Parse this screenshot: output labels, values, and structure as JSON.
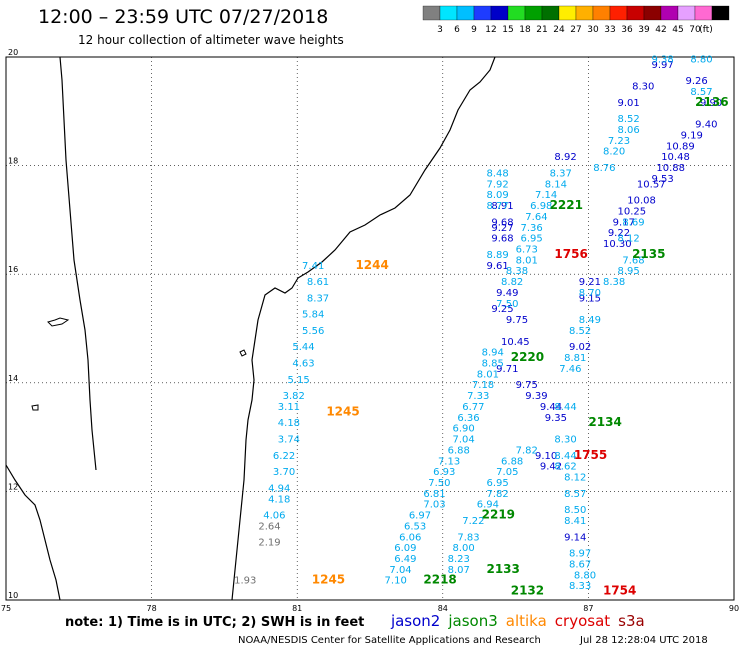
{
  "header": {
    "title": "12:00 – 23:59 UTC 07/27/2018",
    "subtitle": "12 hour collection of altimeter wave heights"
  },
  "color_scale": {
    "labels": [
      "3",
      "6",
      "9",
      "12",
      "15",
      "18",
      "21",
      "24",
      "27",
      "30",
      "33",
      "36",
      "39",
      "42",
      "45",
      "70",
      "(ft)"
    ],
    "colors": [
      "#808080",
      "#00e5ff",
      "#00bfff",
      "#1e3cff",
      "#0000c8",
      "#22dd22",
      "#00a000",
      "#007000",
      "#ffee00",
      "#ffb000",
      "#ff8000",
      "#ff2000",
      "#c80000",
      "#8b0000",
      "#b000b0",
      "#e6a0ff",
      "#ff69d2",
      "#000000"
    ]
  },
  "map": {
    "x_ticks": [
      "75",
      "78",
      "81",
      "84",
      "87",
      "90"
    ],
    "y_ticks": [
      "20",
      "18",
      "16",
      "14",
      "12",
      "10"
    ]
  },
  "chart_data": {
    "type": "scatter",
    "xlim": [
      75,
      90
    ],
    "ylim": [
      10,
      20
    ],
    "grid": true,
    "series": [
      {
        "name": "jason2",
        "color": "#0000cc",
        "points": [
          {
            "x": 87.6,
            "y": 19.1,
            "v": "9.01"
          },
          {
            "x": 88.3,
            "y": 19.8,
            "v": "9.97"
          },
          {
            "x": 87.9,
            "y": 19.4,
            "v": "8.30"
          },
          {
            "x": 86.3,
            "y": 18.1,
            "v": "8.92"
          },
          {
            "x": 85.0,
            "y": 17.2,
            "v": "8.91"
          },
          {
            "x": 85.0,
            "y": 16.9,
            "v": "9.68"
          },
          {
            "x": 85.0,
            "y": 16.8,
            "v": "9.27"
          },
          {
            "x": 85.0,
            "y": 16.6,
            "v": "9.68"
          },
          {
            "x": 84.9,
            "y": 16.1,
            "v": "9.61"
          },
          {
            "x": 85.1,
            "y": 15.6,
            "v": "9.49"
          },
          {
            "x": 85.0,
            "y": 15.3,
            "v": "9.25"
          },
          {
            "x": 85.3,
            "y": 15.1,
            "v": "9.75"
          },
          {
            "x": 85.2,
            "y": 14.7,
            "v": "10.45"
          },
          {
            "x": 85.1,
            "y": 14.2,
            "v": "9.71"
          },
          {
            "x": 85.5,
            "y": 13.9,
            "v": "9.75"
          },
          {
            "x": 85.7,
            "y": 13.7,
            "v": "9.39"
          },
          {
            "x": 86.0,
            "y": 13.5,
            "v": "9.44"
          },
          {
            "x": 86.1,
            "y": 13.3,
            "v": "9.35"
          },
          {
            "x": 85.9,
            "y": 12.6,
            "v": "9.10"
          },
          {
            "x": 86.0,
            "y": 12.4,
            "v": "9.42"
          },
          {
            "x": 86.5,
            "y": 11.1,
            "v": "9.14"
          },
          {
            "x": 86.6,
            "y": 14.6,
            "v": "9.02"
          },
          {
            "x": 86.8,
            "y": 15.8,
            "v": "9.21"
          },
          {
            "x": 86.8,
            "y": 15.5,
            "v": "9.15"
          },
          {
            "x": 89.0,
            "y": 19.5,
            "v": "9.26"
          },
          {
            "x": 89.3,
            "y": 19.1,
            "v": "9.90"
          },
          {
            "x": 89.2,
            "y": 18.7,
            "v": "9.40"
          },
          {
            "x": 88.9,
            "y": 18.5,
            "v": "9.19"
          },
          {
            "x": 88.6,
            "y": 18.3,
            "v": "10.89"
          },
          {
            "x": 88.5,
            "y": 18.1,
            "v": "10.48"
          },
          {
            "x": 88.4,
            "y": 17.9,
            "v": "10.88"
          },
          {
            "x": 88.3,
            "y": 17.7,
            "v": "9.53"
          },
          {
            "x": 88.0,
            "y": 17.6,
            "v": "10.57"
          },
          {
            "x": 87.8,
            "y": 17.3,
            "v": "10.08"
          },
          {
            "x": 87.6,
            "y": 17.1,
            "v": "10.25"
          },
          {
            "x": 87.5,
            "y": 16.9,
            "v": "9.17"
          },
          {
            "x": 87.4,
            "y": 16.7,
            "v": "9.22"
          },
          {
            "x": 87.3,
            "y": 16.5,
            "v": "10.30"
          }
        ]
      },
      {
        "name": "jason3",
        "color": "#00aaee",
        "points": [
          {
            "x": 88.3,
            "y": 19.9,
            "v": "9.38"
          },
          {
            "x": 89.1,
            "y": 19.9,
            "v": "8.80"
          },
          {
            "x": 89.1,
            "y": 19.3,
            "v": "8.57"
          },
          {
            "x": 87.6,
            "y": 18.8,
            "v": "8.52"
          },
          {
            "x": 87.6,
            "y": 18.6,
            "v": "8.06"
          },
          {
            "x": 87.4,
            "y": 18.4,
            "v": "7.23"
          },
          {
            "x": 87.3,
            "y": 18.2,
            "v": "8.20"
          },
          {
            "x": 87.1,
            "y": 17.9,
            "v": "8.76"
          },
          {
            "x": 86.2,
            "y": 17.8,
            "v": "8.37"
          },
          {
            "x": 86.1,
            "y": 17.6,
            "v": "8.14"
          },
          {
            "x": 85.9,
            "y": 17.4,
            "v": "7.14"
          },
          {
            "x": 85.8,
            "y": 17.2,
            "v": "6.98"
          },
          {
            "x": 85.7,
            "y": 17.0,
            "v": "7.64"
          },
          {
            "x": 85.6,
            "y": 16.8,
            "v": "7.36"
          },
          {
            "x": 85.6,
            "y": 16.6,
            "v": "6.95"
          },
          {
            "x": 85.5,
            "y": 16.4,
            "v": "6.73"
          },
          {
            "x": 85.5,
            "y": 16.2,
            "v": "8.01"
          },
          {
            "x": 84.9,
            "y": 17.8,
            "v": "8.48"
          },
          {
            "x": 84.9,
            "y": 17.6,
            "v": "7.92"
          },
          {
            "x": 84.9,
            "y": 17.4,
            "v": "8.09"
          },
          {
            "x": 84.9,
            "y": 17.2,
            "v": "8.77"
          },
          {
            "x": 84.9,
            "y": 16.3,
            "v": "8.89"
          },
          {
            "x": 85.3,
            "y": 16.0,
            "v": "8.38"
          },
          {
            "x": 85.2,
            "y": 15.8,
            "v": "8.82"
          },
          {
            "x": 85.1,
            "y": 15.4,
            "v": "7.50"
          },
          {
            "x": 84.8,
            "y": 14.5,
            "v": "8.94"
          },
          {
            "x": 84.8,
            "y": 14.3,
            "v": "8.85"
          },
          {
            "x": 84.7,
            "y": 14.1,
            "v": "8.01"
          },
          {
            "x": 84.6,
            "y": 13.9,
            "v": "7.18"
          },
          {
            "x": 84.5,
            "y": 13.7,
            "v": "7.33"
          },
          {
            "x": 84.4,
            "y": 13.5,
            "v": "6.77"
          },
          {
            "x": 84.3,
            "y": 13.3,
            "v": "6.36"
          },
          {
            "x": 84.2,
            "y": 13.1,
            "v": "6.90"
          },
          {
            "x": 84.2,
            "y": 12.9,
            "v": "7.04"
          },
          {
            "x": 84.1,
            "y": 12.7,
            "v": "6.88"
          },
          {
            "x": 83.9,
            "y": 12.5,
            "v": "7.13"
          },
          {
            "x": 83.8,
            "y": 12.3,
            "v": "6.93"
          },
          {
            "x": 83.7,
            "y": 12.1,
            "v": "7.50"
          },
          {
            "x": 83.6,
            "y": 11.9,
            "v": "6.81"
          },
          {
            "x": 83.6,
            "y": 11.7,
            "v": "7.03"
          },
          {
            "x": 83.3,
            "y": 11.5,
            "v": "6.97"
          },
          {
            "x": 83.2,
            "y": 11.3,
            "v": "6.53"
          },
          {
            "x": 83.1,
            "y": 11.1,
            "v": "6.06"
          },
          {
            "x": 83.0,
            "y": 10.9,
            "v": "6.09"
          },
          {
            "x": 83.0,
            "y": 10.7,
            "v": "6.49"
          },
          {
            "x": 82.9,
            "y": 10.5,
            "v": "7.04"
          },
          {
            "x": 82.8,
            "y": 10.3,
            "v": "7.10"
          },
          {
            "x": 84.3,
            "y": 11.1,
            "v": "7.83"
          },
          {
            "x": 84.2,
            "y": 10.9,
            "v": "8.00"
          },
          {
            "x": 84.1,
            "y": 10.7,
            "v": "8.23"
          },
          {
            "x": 84.1,
            "y": 10.5,
            "v": "8.07"
          },
          {
            "x": 84.4,
            "y": 11.4,
            "v": "7.22"
          },
          {
            "x": 84.7,
            "y": 11.7,
            "v": "6.94"
          },
          {
            "x": 84.9,
            "y": 12.1,
            "v": "6.95"
          },
          {
            "x": 84.9,
            "y": 11.9,
            "v": "7.82"
          },
          {
            "x": 85.1,
            "y": 12.3,
            "v": "7.05"
          },
          {
            "x": 85.2,
            "y": 12.5,
            "v": "6.88"
          },
          {
            "x": 85.5,
            "y": 12.7,
            "v": "7.82"
          },
          {
            "x": 86.3,
            "y": 13.5,
            "v": "8.44"
          },
          {
            "x": 86.3,
            "y": 12.9,
            "v": "8.30"
          },
          {
            "x": 86.3,
            "y": 12.6,
            "v": "8.44"
          },
          {
            "x": 86.3,
            "y": 12.4,
            "v": "8.62"
          },
          {
            "x": 86.5,
            "y": 12.2,
            "v": "8.12"
          },
          {
            "x": 86.5,
            "y": 11.9,
            "v": "8.57"
          },
          {
            "x": 86.5,
            "y": 11.6,
            "v": "8.50"
          },
          {
            "x": 86.5,
            "y": 11.4,
            "v": "8.41"
          },
          {
            "x": 86.6,
            "y": 10.8,
            "v": "8.97"
          },
          {
            "x": 86.6,
            "y": 10.6,
            "v": "8.67"
          },
          {
            "x": 86.7,
            "y": 10.4,
            "v": "8.80"
          },
          {
            "x": 86.6,
            "y": 10.2,
            "v": "8.33"
          },
          {
            "x": 87.7,
            "y": 16.2,
            "v": "7.68"
          },
          {
            "x": 87.6,
            "y": 16.0,
            "v": "8.95"
          },
          {
            "x": 87.3,
            "y": 15.8,
            "v": "8.38"
          },
          {
            "x": 86.8,
            "y": 15.6,
            "v": "8.70"
          },
          {
            "x": 86.8,
            "y": 15.1,
            "v": "8.49"
          },
          {
            "x": 86.6,
            "y": 14.9,
            "v": "8.52"
          },
          {
            "x": 86.5,
            "y": 14.4,
            "v": "8.81"
          },
          {
            "x": 86.4,
            "y": 14.2,
            "v": "7.46"
          },
          {
            "x": 87.6,
            "y": 16.6,
            "v": "8.12"
          },
          {
            "x": 87.7,
            "y": 16.9,
            "v": "8.69"
          }
        ]
      },
      {
        "name": "altika",
        "color": "#ff8800",
        "points": []
      },
      {
        "name": "cryosat",
        "color": "#dd0000",
        "points": []
      },
      {
        "name": "s3a",
        "color": "#990000",
        "points": []
      },
      {
        "name": "coastal-track",
        "color": "#00aaee",
        "points": [
          {
            "x": 81.1,
            "y": 16.1,
            "v": "7.41"
          },
          {
            "x": 81.2,
            "y": 15.8,
            "v": "8.61"
          },
          {
            "x": 81.2,
            "y": 15.5,
            "v": "8.37"
          },
          {
            "x": 81.1,
            "y": 15.2,
            "v": "5.84"
          },
          {
            "x": 81.1,
            "y": 14.9,
            "v": "5.56"
          },
          {
            "x": 80.9,
            "y": 14.6,
            "v": "5.44"
          },
          {
            "x": 80.9,
            "y": 14.3,
            "v": "4.63"
          },
          {
            "x": 80.8,
            "y": 14.0,
            "v": "5.15"
          },
          {
            "x": 80.7,
            "y": 13.7,
            "v": "3.82"
          },
          {
            "x": 80.6,
            "y": 13.5,
            "v": "3.11"
          },
          {
            "x": 80.6,
            "y": 13.2,
            "v": "4.18"
          },
          {
            "x": 80.6,
            "y": 12.9,
            "v": "3.74"
          },
          {
            "x": 80.5,
            "y": 12.6,
            "v": "6.22"
          },
          {
            "x": 80.5,
            "y": 12.3,
            "v": "3.70"
          },
          {
            "x": 80.4,
            "y": 12.0,
            "v": "4.94"
          },
          {
            "x": 80.4,
            "y": 11.8,
            "v": "4.18"
          },
          {
            "x": 80.3,
            "y": 11.5,
            "v": "4.06"
          }
        ]
      },
      {
        "name": "coastal-gray",
        "color": "#707070",
        "points": [
          {
            "x": 80.2,
            "y": 11.3,
            "v": "2.64"
          },
          {
            "x": 80.2,
            "y": 11.0,
            "v": "2.19"
          },
          {
            "x": 79.7,
            "y": 10.3,
            "v": "1.93"
          }
        ]
      }
    ],
    "time_labels": [
      {
        "x": 82.2,
        "y": 16.1,
        "v": "1244",
        "color": "#ff8800"
      },
      {
        "x": 81.6,
        "y": 13.4,
        "v": "1245",
        "color": "#ff8800"
      },
      {
        "x": 81.3,
        "y": 10.3,
        "v": "1245",
        "color": "#ff8800"
      },
      {
        "x": 89.2,
        "y": 19.1,
        "v": "2136",
        "color": "#008800"
      },
      {
        "x": 86.2,
        "y": 17.2,
        "v": "2221",
        "color": "#008800"
      },
      {
        "x": 87.9,
        "y": 16.3,
        "v": "2135",
        "color": "#008800"
      },
      {
        "x": 87.0,
        "y": 13.2,
        "v": "2134",
        "color": "#008800"
      },
      {
        "x": 84.8,
        "y": 11.5,
        "v": "2219",
        "color": "#008800"
      },
      {
        "x": 85.4,
        "y": 14.4,
        "v": "2220",
        "color": "#008800"
      },
      {
        "x": 84.9,
        "y": 10.5,
        "v": "2133",
        "color": "#008800"
      },
      {
        "x": 83.6,
        "y": 10.3,
        "v": "2218",
        "color": "#008800"
      },
      {
        "x": 85.4,
        "y": 10.1,
        "v": "2132",
        "color": "#008800"
      },
      {
        "x": 86.3,
        "y": 16.3,
        "v": "1756",
        "color": "#dd0000"
      },
      {
        "x": 86.7,
        "y": 12.6,
        "v": "1755",
        "color": "#dd0000"
      },
      {
        "x": 87.3,
        "y": 10.1,
        "v": "1754",
        "color": "#dd0000"
      }
    ]
  },
  "footer": {
    "note": "note: 1) Time is in UTC; 2) SWH is in feet",
    "sat_labels": [
      {
        "name": "jason2",
        "color": "#0000cc"
      },
      {
        "name": "jason3",
        "color": "#008800"
      },
      {
        "name": "altika",
        "color": "#ff8800"
      },
      {
        "name": "cryosat",
        "color": "#dd0000"
      },
      {
        "name": "s3a",
        "color": "#990000"
      }
    ],
    "credit": "NOAA/NESDIS Center for Satellite Applications and Research",
    "timestamp": "Jul 28 12:28:04 UTC 2018"
  }
}
